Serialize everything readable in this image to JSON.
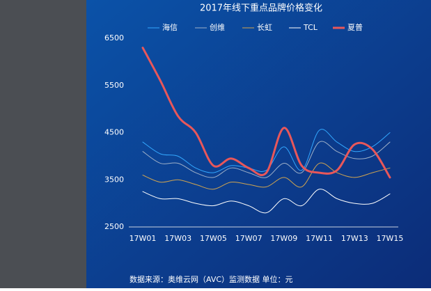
{
  "chart_data": {
    "type": "line",
    "title": "2017年线下重点品牌价格变化",
    "footnote": "数据来源：奥维云网（AVC）监测数据 单位：元",
    "categories": [
      "17W01",
      null,
      "17W03",
      null,
      "17W05",
      null,
      "17W07",
      null,
      "17W09",
      null,
      "17W11",
      null,
      "17W13",
      null,
      "17W15"
    ],
    "ylim": [
      2500,
      6500
    ],
    "yticks": [
      2500,
      3500,
      4500,
      5500,
      6500
    ],
    "series": [
      {
        "name": "海信",
        "color": "#33a8ff",
        "width": 1,
        "values": [
          4300,
          4050,
          4000,
          3750,
          3650,
          3800,
          3750,
          3700,
          4200,
          3700,
          4550,
          4300,
          4100,
          4200,
          4500
        ]
      },
      {
        "name": "创维",
        "color": "#9fb0c8",
        "width": 1,
        "values": [
          4100,
          3850,
          3850,
          3650,
          3550,
          3750,
          3650,
          3550,
          3850,
          3650,
          4300,
          4100,
          3950,
          4000,
          4300
        ]
      },
      {
        "name": "长虹",
        "color": "#d0a450",
        "width": 1,
        "values": [
          3600,
          3450,
          3500,
          3400,
          3300,
          3450,
          3400,
          3350,
          3550,
          3350,
          3850,
          3650,
          3550,
          3650,
          3750
        ]
      },
      {
        "name": "TCL",
        "color": "#ffffff",
        "width": 1,
        "values": [
          3250,
          3100,
          3100,
          3000,
          2950,
          3050,
          2950,
          2800,
          3100,
          2950,
          3300,
          3100,
          3000,
          3000,
          3200
        ]
      },
      {
        "name": "夏普",
        "color": "#e8575a",
        "width": 3,
        "values": [
          6300,
          5600,
          4850,
          4500,
          3800,
          3950,
          3750,
          3650,
          4600,
          3800,
          3650,
          3700,
          4250,
          4150,
          3550
        ]
      }
    ]
  }
}
